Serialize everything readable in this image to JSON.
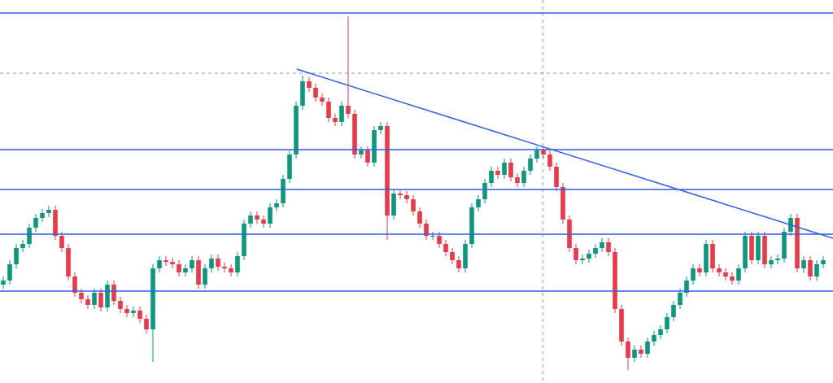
{
  "chart_data": {
    "type": "candlestick",
    "xlim": [
      0,
      128
    ],
    "ylim": [
      0,
      471
    ],
    "up_color": "#089981",
    "down_color": "#f23645",
    "line_color": "#2f5fe8",
    "open": [
      121,
      126,
      146,
      166,
      171,
      191,
      203,
      209,
      213,
      181,
      166,
      131,
      111,
      103,
      96,
      111,
      93,
      121,
      101,
      91,
      86,
      89,
      79,
      66,
      141,
      151,
      149,
      146,
      136,
      141,
      151,
      121,
      141,
      153,
      143,
      141,
      136,
      156,
      196,
      206,
      201,
      196,
      216,
      221,
      251,
      281,
      341,
      371,
      363,
      351,
      346,
      326,
      321,
      341,
      331,
      281,
      286,
      271,
      311,
      316,
      206,
      233,
      231,
      226,
      211,
      196,
      181,
      181,
      171,
      161,
      151,
      141,
      171,
      216,
      226,
      246,
      261,
      256,
      271,
      253,
      246,
      261,
      276,
      286,
      281,
      266,
      241,
      201,
      166,
      151,
      153,
      159,
      166,
      173,
      161,
      91,
      51,
      31,
      41,
      36,
      51,
      59,
      66,
      81,
      96,
      111,
      126,
      141,
      136,
      171,
      141,
      136,
      131,
      126,
      141,
      181,
      151,
      181,
      146,
      151,
      153,
      186,
      203,
      141,
      151,
      131,
      146
    ],
    "high": [
      131,
      151,
      171,
      176,
      196,
      208,
      214,
      218,
      218,
      186,
      171,
      136,
      116,
      108,
      116,
      116,
      126,
      126,
      106,
      96,
      94,
      94,
      84,
      146,
      156,
      156,
      154,
      151,
      146,
      156,
      156,
      146,
      158,
      158,
      148,
      146,
      161,
      201,
      211,
      211,
      206,
      221,
      226,
      256,
      286,
      346,
      378,
      376,
      368,
      356,
      351,
      331,
      346,
      451,
      336,
      291,
      291,
      316,
      321,
      321,
      238,
      238,
      236,
      231,
      216,
      201,
      186,
      186,
      176,
      166,
      156,
      176,
      221,
      231,
      251,
      266,
      266,
      276,
      276,
      258,
      266,
      281,
      291,
      291,
      286,
      271,
      246,
      206,
      171,
      158,
      164,
      171,
      178,
      178,
      166,
      96,
      56,
      46,
      46,
      56,
      64,
      71,
      86,
      101,
      116,
      131,
      146,
      146,
      176,
      176,
      146,
      141,
      136,
      146,
      186,
      186,
      186,
      186,
      156,
      158,
      191,
      208,
      208,
      156,
      156,
      151,
      156
    ],
    "low": [
      116,
      121,
      141,
      161,
      166,
      186,
      198,
      204,
      176,
      161,
      126,
      106,
      98,
      91,
      91,
      88,
      88,
      96,
      86,
      81,
      81,
      74,
      61,
      26,
      136,
      144,
      141,
      131,
      131,
      136,
      116,
      116,
      136,
      138,
      136,
      131,
      131,
      151,
      191,
      196,
      191,
      191,
      211,
      216,
      246,
      276,
      336,
      358,
      346,
      341,
      321,
      316,
      316,
      326,
      276,
      276,
      266,
      266,
      306,
      176,
      201,
      226,
      221,
      206,
      191,
      176,
      176,
      166,
      156,
      146,
      136,
      136,
      166,
      211,
      221,
      241,
      251,
      251,
      248,
      241,
      241,
      256,
      271,
      276,
      261,
      236,
      196,
      161,
      146,
      146,
      148,
      154,
      161,
      156,
      86,
      46,
      16,
      26,
      31,
      31,
      46,
      54,
      61,
      76,
      91,
      106,
      121,
      131,
      131,
      136,
      131,
      126,
      121,
      121,
      136,
      146,
      146,
      141,
      141,
      146,
      148,
      181,
      136,
      136,
      126,
      126,
      141
    ],
    "close": [
      126,
      146,
      166,
      171,
      191,
      203,
      209,
      213,
      181,
      166,
      131,
      111,
      103,
      96,
      111,
      93,
      121,
      101,
      91,
      86,
      89,
      79,
      66,
      141,
      151,
      149,
      146,
      136,
      141,
      151,
      121,
      141,
      153,
      143,
      141,
      136,
      156,
      196,
      206,
      201,
      196,
      216,
      221,
      251,
      281,
      341,
      371,
      363,
      351,
      346,
      326,
      321,
      341,
      331,
      281,
      286,
      271,
      311,
      316,
      206,
      233,
      231,
      226,
      211,
      196,
      181,
      181,
      171,
      161,
      151,
      141,
      171,
      216,
      226,
      246,
      261,
      256,
      271,
      253,
      246,
      261,
      276,
      286,
      281,
      266,
      241,
      201,
      166,
      151,
      153,
      159,
      166,
      173,
      161,
      91,
      51,
      31,
      41,
      36,
      51,
      59,
      66,
      81,
      96,
      111,
      126,
      141,
      136,
      171,
      141,
      136,
      131,
      126,
      141,
      181,
      151,
      181,
      146,
      151,
      153,
      186,
      203,
      141,
      151,
      131,
      146,
      151
    ],
    "levels": [
      455,
      287,
      238,
      183,
      113
    ],
    "trendline": {
      "x": [
        45.6,
        128
      ],
      "y": [
        386,
        178
      ]
    },
    "crosshair": {
      "x": 83.4,
      "y": 381
    }
  }
}
